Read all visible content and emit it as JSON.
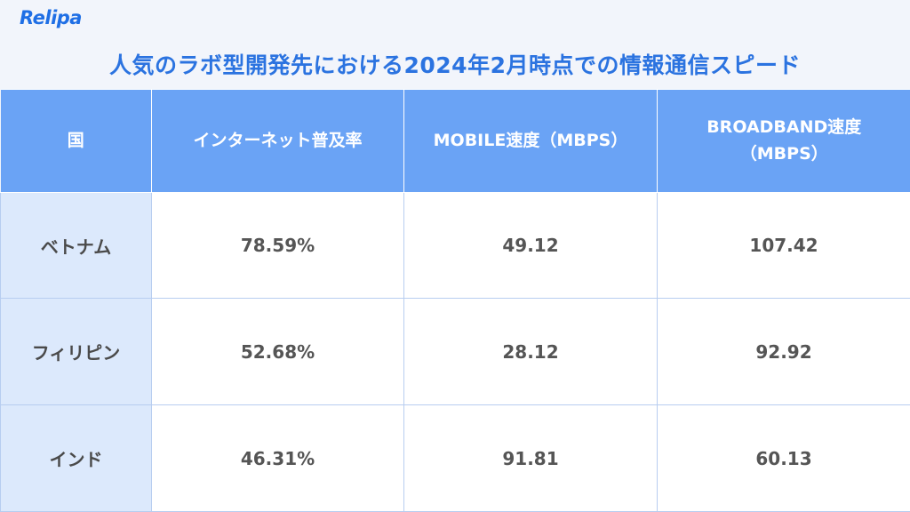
{
  "logo": {
    "text": "Relipa"
  },
  "title": "人気のラボ型開発先における2024年2月時点での情報通信スピード",
  "table": {
    "headers": [
      "国",
      "インターネット普及率",
      "MOBILE速度（MBPS）",
      "BROADBAND速度（MBPS）"
    ],
    "rows": [
      {
        "country": "ベトナム",
        "penetration": "78.59%",
        "mobile": "49.12",
        "broadband": "107.42"
      },
      {
        "country": "フィリピン",
        "penetration": "52.68%",
        "mobile": "28.12",
        "broadband": "92.92"
      },
      {
        "country": "インド",
        "penetration": "46.31%",
        "mobile": "91.81",
        "broadband": "60.13"
      }
    ]
  },
  "colors": {
    "header_bg": "#6aa3f5",
    "country_bg": "#dce9fc",
    "title": "#2b73e0",
    "logo": "#1f6fe5"
  }
}
